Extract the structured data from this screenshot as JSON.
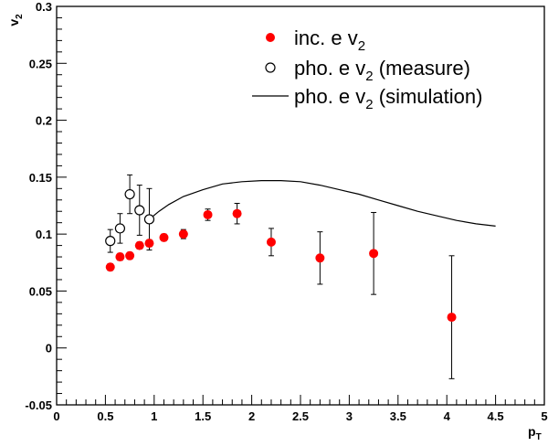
{
  "chart_data": {
    "type": "scatter",
    "title": "",
    "xlabel": "p",
    "xlabel_sub": "T",
    "ylabel": "v",
    "ylabel_sub": "2",
    "xlim": [
      0,
      5
    ],
    "ylim": [
      -0.05,
      0.3
    ],
    "x_ticks": [
      0,
      0.5,
      1,
      1.5,
      2,
      2.5,
      3,
      3.5,
      4,
      4.5,
      5
    ],
    "x_tick_labels": [
      "0",
      "0.5",
      "1",
      "1.5",
      "2",
      "2.5",
      "3",
      "3.5",
      "4",
      "4.5",
      "5"
    ],
    "y_ticks": [
      -0.05,
      0,
      0.05,
      0.1,
      0.15,
      0.2,
      0.25,
      0.3
    ],
    "y_tick_labels": [
      "-0.05",
      "0",
      "0.05",
      "0.1",
      "0.15",
      "0.2",
      "0.25",
      "0.3"
    ],
    "grid": false,
    "legend_position": "top-right",
    "colors": {
      "inc": "#ff0000",
      "frame": "#000000"
    },
    "series": [
      {
        "name": "inc. e v",
        "name_sub": "2",
        "marker": "filled-circle",
        "points": [
          {
            "x": 0.55,
            "y": 0.071,
            "err": 0.003
          },
          {
            "x": 0.65,
            "y": 0.08,
            "err": 0.003
          },
          {
            "x": 0.75,
            "y": 0.081,
            "err": 0.003
          },
          {
            "x": 0.85,
            "y": 0.09,
            "err": 0.003
          },
          {
            "x": 0.95,
            "y": 0.092,
            "err": 0.003
          },
          {
            "x": 1.1,
            "y": 0.097,
            "err": 0.003
          },
          {
            "x": 1.3,
            "y": 0.1,
            "err": 0.004
          },
          {
            "x": 1.55,
            "y": 0.117,
            "err": 0.005
          },
          {
            "x": 1.85,
            "y": 0.118,
            "err": 0.009
          },
          {
            "x": 2.2,
            "y": 0.093,
            "err": 0.012
          },
          {
            "x": 2.7,
            "y": 0.079,
            "err": 0.023
          },
          {
            "x": 3.25,
            "y": 0.083,
            "err": 0.036
          },
          {
            "x": 4.05,
            "y": 0.027,
            "err": 0.054
          }
        ]
      },
      {
        "name": "pho. e v",
        "name_sub": "2",
        "name_suffix": " (measure)",
        "marker": "open-circle",
        "points": [
          {
            "x": 0.55,
            "y": 0.094,
            "err": 0.01
          },
          {
            "x": 0.65,
            "y": 0.105,
            "err": 0.013
          },
          {
            "x": 0.75,
            "y": 0.135,
            "err": 0.017
          },
          {
            "x": 0.85,
            "y": 0.121,
            "err": 0.022
          },
          {
            "x": 0.95,
            "y": 0.113,
            "err": 0.027
          }
        ]
      },
      {
        "name": "pho. e v",
        "name_sub": "2",
        "name_suffix": " (simulation)",
        "marker": "line",
        "points": [
          {
            "x": 0.95,
            "y": 0.113
          },
          {
            "x": 1.05,
            "y": 0.12
          },
          {
            "x": 1.15,
            "y": 0.126
          },
          {
            "x": 1.3,
            "y": 0.133
          },
          {
            "x": 1.5,
            "y": 0.139
          },
          {
            "x": 1.7,
            "y": 0.144
          },
          {
            "x": 1.9,
            "y": 0.146
          },
          {
            "x": 2.1,
            "y": 0.147
          },
          {
            "x": 2.3,
            "y": 0.147
          },
          {
            "x": 2.5,
            "y": 0.146
          },
          {
            "x": 2.7,
            "y": 0.143
          },
          {
            "x": 2.9,
            "y": 0.139
          },
          {
            "x": 3.1,
            "y": 0.135
          },
          {
            "x": 3.3,
            "y": 0.13
          },
          {
            "x": 3.5,
            "y": 0.125
          },
          {
            "x": 3.7,
            "y": 0.12
          },
          {
            "x": 3.9,
            "y": 0.116
          },
          {
            "x": 4.1,
            "y": 0.112
          },
          {
            "x": 4.3,
            "y": 0.109
          },
          {
            "x": 4.5,
            "y": 0.107
          }
        ]
      }
    ]
  }
}
